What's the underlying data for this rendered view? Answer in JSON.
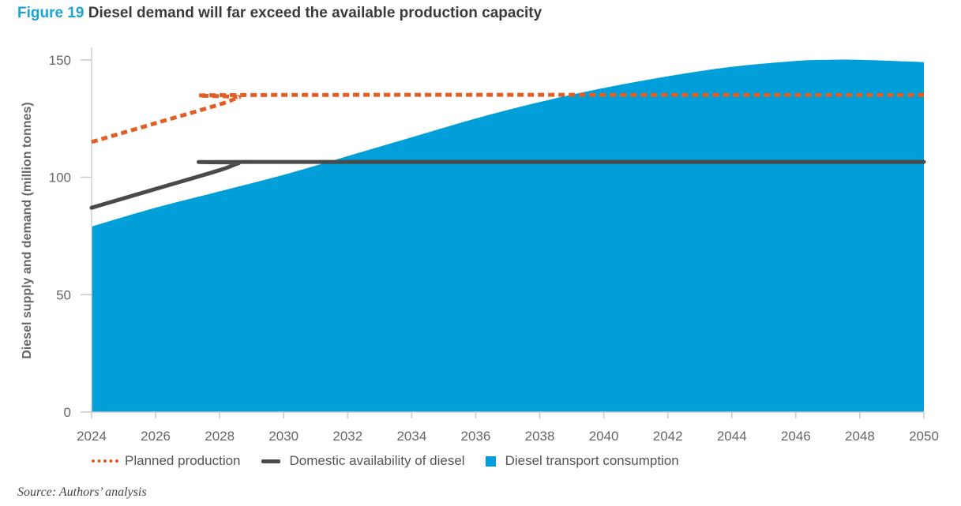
{
  "figure": {
    "number": "Figure 19",
    "title": "Diesel demand will far exceed the available production capacity"
  },
  "source": "Source: Authors’ analysis",
  "chart_data": {
    "type": "area",
    "ylabel": "Diesel supply and demand (million tonnes)",
    "xlabel": "",
    "xlim": [
      2024,
      2050
    ],
    "ylim": [
      0,
      160
    ],
    "x_ticks": [
      "2024",
      "2026",
      "2028",
      "2030",
      "2032",
      "2034",
      "2036",
      "2038",
      "2040",
      "2042",
      "2044",
      "2046",
      "2048",
      "2050"
    ],
    "y_ticks": [
      "0",
      "50",
      "100",
      "150"
    ],
    "grid": false,
    "legend_position": "bottom",
    "series": [
      {
        "name": "Diesel transport consumption",
        "type": "area",
        "color": "#009fd9",
        "x": [
          2024,
          2026,
          2028,
          2030,
          2032,
          2034,
          2036,
          2038,
          2040,
          2042,
          2044,
          2046,
          2047,
          2048,
          2050
        ],
        "y": [
          79,
          87,
          94,
          101,
          109,
          117,
          125,
          132,
          138,
          143,
          147,
          149.5,
          150,
          150,
          149
        ]
      },
      {
        "name": "Planned production",
        "type": "line",
        "style": "dotted",
        "color": "#e15f24",
        "x": [
          2024,
          2026,
          2028,
          2028.6,
          2029,
          2050
        ],
        "y": [
          115,
          123,
          131,
          134,
          135,
          135
        ]
      },
      {
        "name": "Domestic availability of diesel",
        "type": "line",
        "style": "solid",
        "color": "#4a4a4a",
        "x": [
          2024,
          2026,
          2028,
          2028.6,
          2029,
          2050
        ],
        "y": [
          87,
          95,
          103,
          106,
          106.5,
          106.5
        ]
      }
    ]
  }
}
